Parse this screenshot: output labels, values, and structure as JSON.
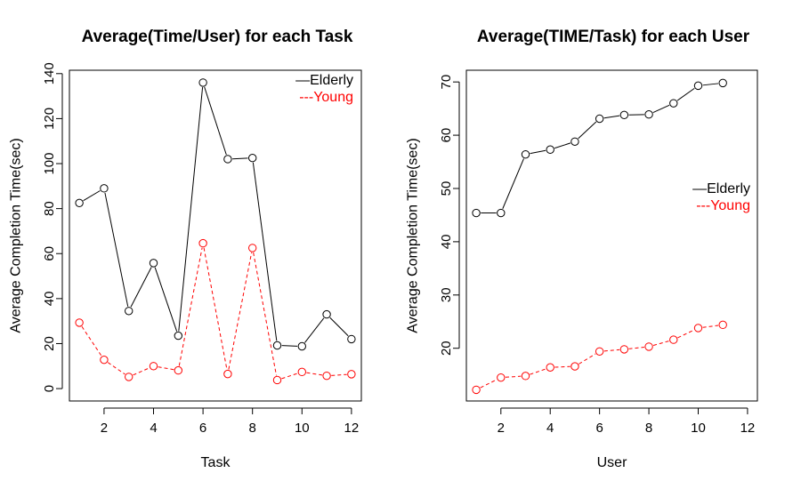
{
  "chart_data": [
    {
      "type": "line",
      "title": "Average(Time/User) for each Task",
      "xlabel": "Task",
      "ylabel": "Average Completion Time(sec)",
      "x": [
        1,
        2,
        3,
        4,
        5,
        6,
        7,
        8,
        9,
        10,
        11,
        12
      ],
      "xlim": [
        0.6,
        12.4
      ],
      "ylim": [
        -5.5,
        141.5
      ],
      "xticks": [
        2,
        4,
        6,
        8,
        10,
        12
      ],
      "yticks": [
        0,
        20,
        40,
        60,
        80,
        100,
        120,
        140
      ],
      "legend_position": "top-right",
      "series": [
        {
          "name": "Elderly",
          "legend_label": "—Elderly",
          "color": "#000000",
          "line": "solid",
          "values": [
            82.5,
            89,
            34.5,
            55.8,
            23.5,
            136,
            102,
            102.5,
            19.2,
            18.8,
            33,
            22
          ]
        },
        {
          "name": "Young",
          "legend_label": "---Young",
          "color": "#ff0000",
          "line": "dashed",
          "values": [
            29.3,
            12.8,
            5.2,
            10,
            8.1,
            64.6,
            6.5,
            62.5,
            3.8,
            7.4,
            5.7,
            6.4
          ]
        }
      ]
    },
    {
      "type": "line",
      "title": "Average(TIME/Task) for each User",
      "xlabel": "User",
      "ylabel": "Average Completion Time(sec)",
      "x": [
        1,
        2,
        3,
        4,
        5,
        6,
        7,
        8,
        9,
        10,
        11
      ],
      "xlim": [
        0.6,
        12.4
      ],
      "ylim": [
        10.1,
        72.2
      ],
      "xticks": [
        2,
        4,
        6,
        8,
        10,
        12
      ],
      "yticks": [
        20,
        30,
        40,
        50,
        60,
        70
      ],
      "legend_position": "right",
      "series": [
        {
          "name": "Elderly",
          "legend_label": "—Elderly",
          "color": "#000000",
          "line": "solid",
          "values": [
            45.4,
            45.4,
            56.4,
            57.3,
            58.8,
            63.1,
            63.8,
            63.9,
            66,
            69.3,
            69.8
          ]
        },
        {
          "name": "Young",
          "legend_label": "---Young",
          "color": "#ff0000",
          "line": "dashed",
          "values": [
            12.2,
            14.5,
            14.8,
            16.4,
            16.6,
            19.4,
            19.8,
            20.3,
            21.6,
            23.8,
            24.4
          ]
        }
      ]
    }
  ]
}
